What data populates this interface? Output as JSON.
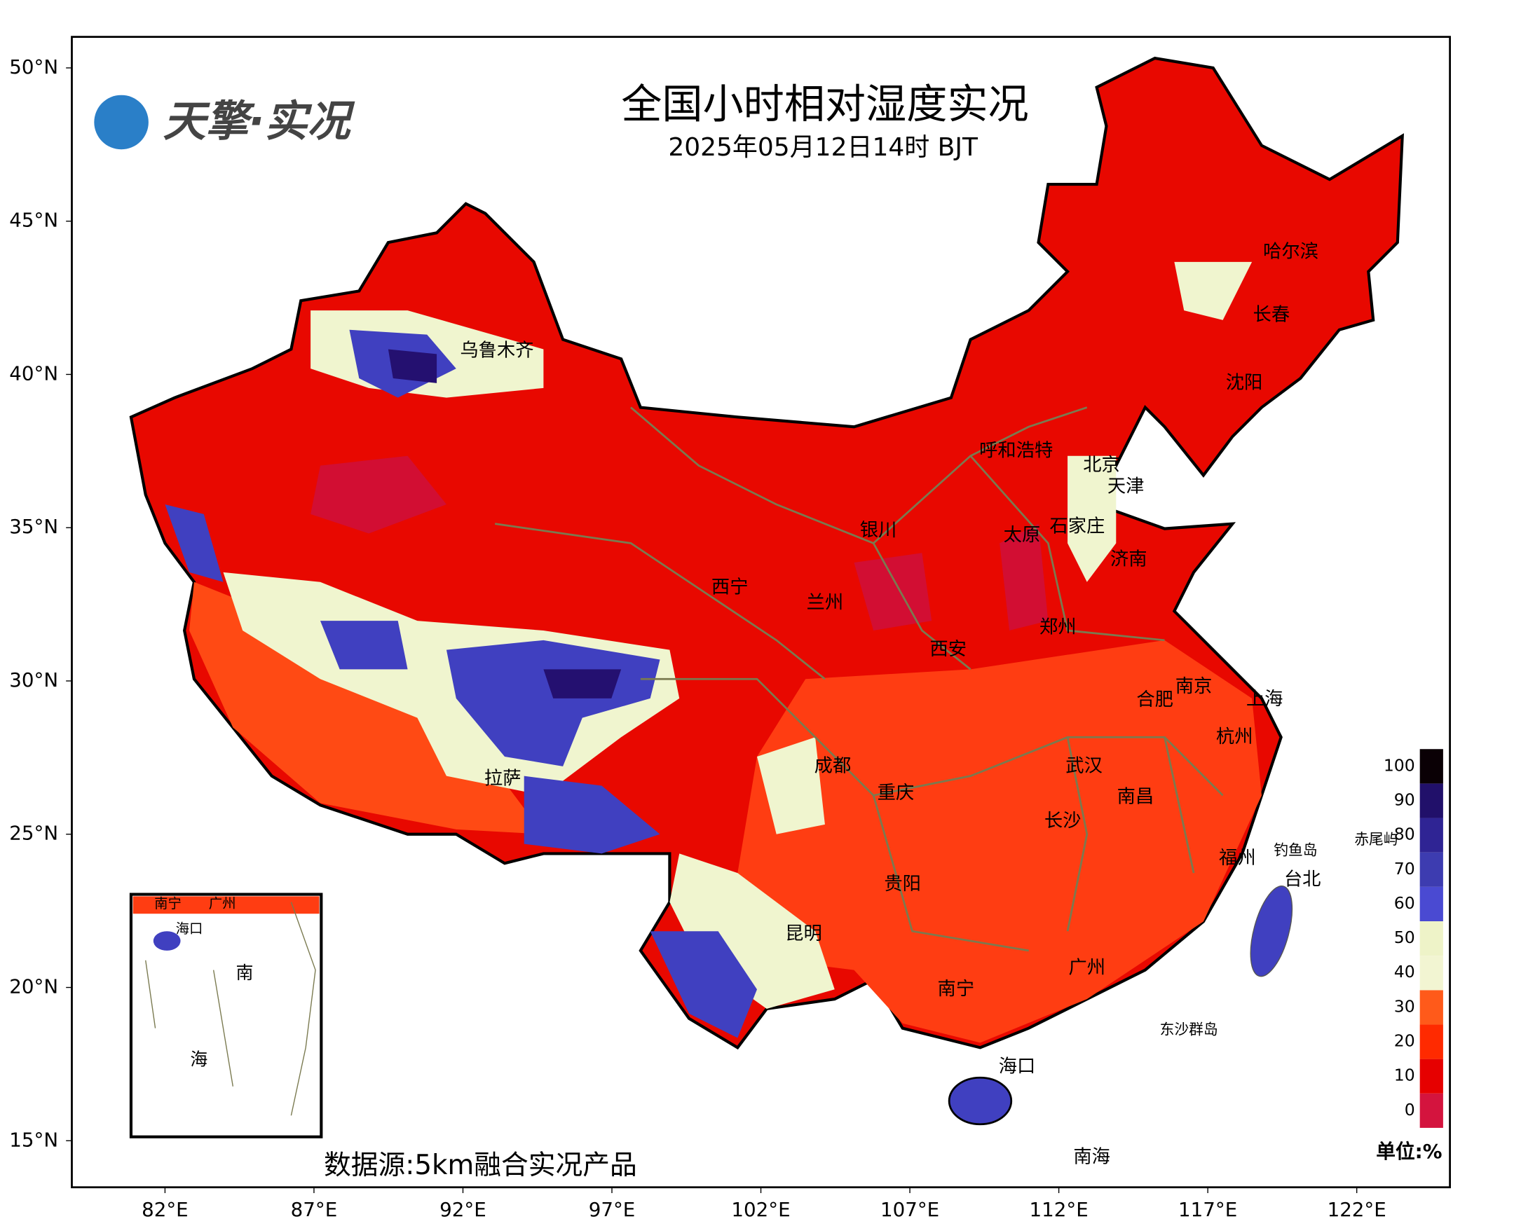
{
  "header": {
    "title": "全国小时相对湿度实况",
    "subtitle": "2025年05月12日14时 BJT",
    "logo": "天擎·实况"
  },
  "map": {
    "lat_ticks": [
      {
        "value": 50,
        "label": "50°N"
      },
      {
        "value": 45,
        "label": "45°N"
      },
      {
        "value": 40,
        "label": "40°N"
      },
      {
        "value": 35,
        "label": "35°N"
      },
      {
        "value": 30,
        "label": "30°N"
      },
      {
        "value": 25,
        "label": "25°N"
      },
      {
        "value": 20,
        "label": "20°N"
      },
      {
        "value": 15,
        "label": "15°N"
      }
    ],
    "lon_ticks": [
      {
        "value": 82,
        "label": "82°E"
      },
      {
        "value": 87,
        "label": "87°E"
      },
      {
        "value": 92,
        "label": "92°E"
      },
      {
        "value": 97,
        "label": "97°E"
      },
      {
        "value": 102,
        "label": "102°E"
      },
      {
        "value": 107,
        "label": "107°E"
      },
      {
        "value": 112,
        "label": "112°E"
      },
      {
        "value": 117,
        "label": "117°E"
      },
      {
        "value": 122,
        "label": "122°E"
      }
    ],
    "cities": [
      "乌鲁木齐",
      "哈尔滨",
      "长春",
      "沈阳",
      "呼和浩特",
      "北京",
      "天津",
      "银川",
      "石家庄",
      "太原",
      "济南",
      "西宁",
      "兰州",
      "郑州",
      "西安",
      "南京",
      "合肥",
      "上海",
      "杭州",
      "成都",
      "武汉",
      "重庆",
      "南昌",
      "长沙",
      "拉萨",
      "福州",
      "钓鱼岛",
      "赤尾屿",
      "台北",
      "贵阳",
      "昆明",
      "广州",
      "南宁",
      "东沙群岛",
      "海口",
      "南海"
    ],
    "inset_labels": [
      "南宁",
      "广州",
      "海口",
      "南",
      "海"
    ]
  },
  "legend": {
    "ticks": [
      0,
      10,
      20,
      30,
      40,
      50,
      60,
      70,
      80,
      90,
      100
    ],
    "colors": [
      "#d4143e",
      "#e60000",
      "#ff2a00",
      "#ff5a1a",
      "#f2f5d2",
      "#eef3c8",
      "#4a4ad2",
      "#3d3cb0",
      "#2f2494",
      "#21106a",
      "#0a0005"
    ],
    "unit": "单位:%"
  },
  "source": "数据源:5km融合实况产品"
}
